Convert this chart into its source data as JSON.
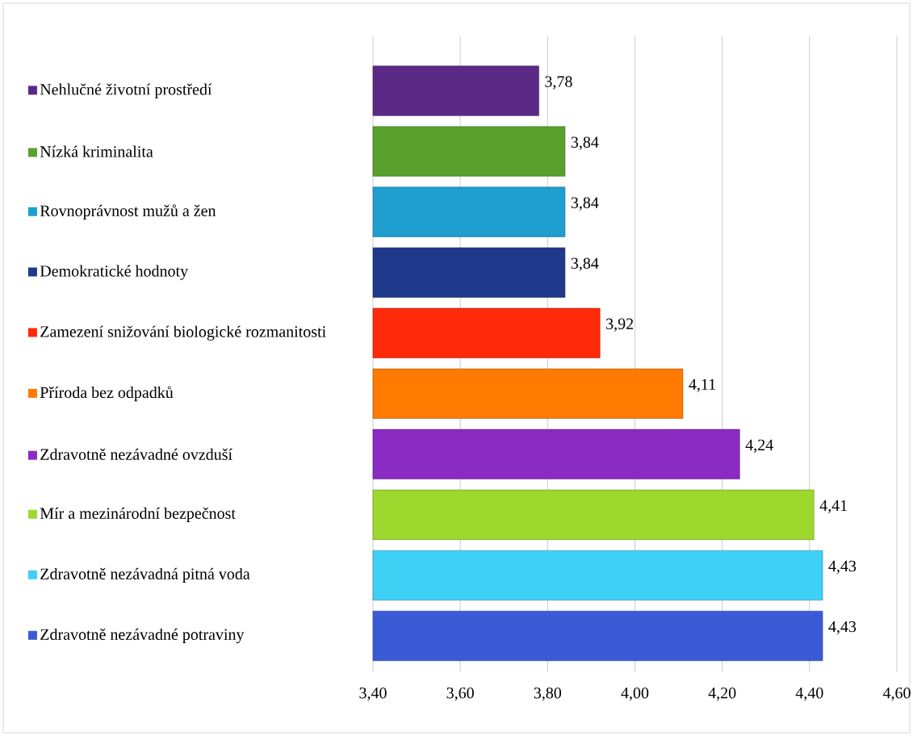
{
  "chart_data": {
    "type": "bar",
    "orientation": "horizontal",
    "categories": [
      "Nehlučné životní prostředí",
      "Nízká kriminalita",
      "Rovnoprávnost mužů a žen",
      "Demokratické hodnoty",
      "Zamezení snižování biologické rozmanitosti",
      "Příroda bez odpadků",
      "Zdravotně nezávadné ovzduší",
      "Mír a mezinárodní bezpečnost",
      "Zdravotně nezávadná pitná voda",
      "Zdravotně nezávadné potraviny"
    ],
    "values": [
      3.78,
      3.84,
      3.84,
      3.84,
      3.92,
      4.11,
      4.24,
      4.41,
      4.43,
      4.43
    ],
    "value_labels": [
      "3,78",
      "3,84",
      "3,84",
      "3,84",
      "3,92",
      "4,11",
      "4,24",
      "4,41",
      "4,43",
      "4,43"
    ],
    "colors": [
      "#5b2a86",
      "#5aa02c",
      "#1e9fd0",
      "#1f3a8a",
      "#ff2a0a",
      "#ff7a00",
      "#8a2bc2",
      "#9ed82e",
      "#3fd0f5",
      "#3b5bd6"
    ],
    "xlim": [
      3.4,
      4.6
    ],
    "xticks": [
      {
        "value": 3.4,
        "label": "3,40"
      },
      {
        "value": 3.6,
        "label": "3,60"
      },
      {
        "value": 3.8,
        "label": "3,80"
      },
      {
        "value": 4.0,
        "label": "4,00"
      },
      {
        "value": 4.2,
        "label": "4,20"
      },
      {
        "value": 4.4,
        "label": "4,40"
      },
      {
        "value": 4.6,
        "label": "4,60"
      }
    ],
    "grid": "x"
  }
}
